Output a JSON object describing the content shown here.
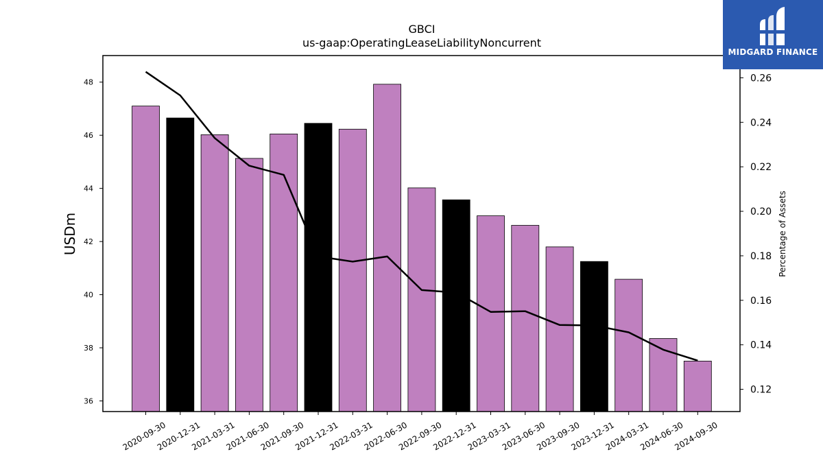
{
  "chart_data": {
    "type": "bar",
    "title": "GBCI",
    "subtitle": "us-gaap:OperatingLeaseLiabilityNoncurrent",
    "ylabel": "USDm",
    "y2label": "Percentage of Assets",
    "ylim": [
      35.6,
      49.0
    ],
    "y2lim": [
      0.11,
      0.27
    ],
    "yticks": [
      36,
      38,
      40,
      42,
      44,
      46,
      48
    ],
    "y2ticks": [
      0.12,
      0.14,
      0.16,
      0.18,
      0.2,
      0.22,
      0.24,
      0.26
    ],
    "categories": [
      "2020-09-30",
      "2020-12-31",
      "2021-03-31",
      "2021-06-30",
      "2021-09-30",
      "2021-12-31",
      "2022-03-31",
      "2022-06-30",
      "2022-09-30",
      "2022-12-31",
      "2023-03-31",
      "2023-06-30",
      "2023-09-30",
      "2023-12-31",
      "2024-03-31",
      "2024-06-30",
      "2024-09-30"
    ],
    "series": [
      {
        "type": "bar",
        "axis": "left",
        "values": [
          47.1,
          46.65,
          46.02,
          45.13,
          46.05,
          46.45,
          46.23,
          47.92,
          44.02,
          43.57,
          42.97,
          42.61,
          41.8,
          41.25,
          40.58,
          38.35,
          37.5
        ],
        "colors": [
          "#bf80bf",
          "#000000",
          "#bf80bf",
          "#bf80bf",
          "#bf80bf",
          "#000000",
          "#bf80bf",
          "#bf80bf",
          "#bf80bf",
          "#000000",
          "#bf80bf",
          "#bf80bf",
          "#bf80bf",
          "#000000",
          "#bf80bf",
          "#bf80bf",
          "#bf80bf"
        ]
      },
      {
        "type": "line",
        "axis": "right",
        "color": "#000000",
        "values": [
          0.2627,
          0.2521,
          0.2329,
          0.2205,
          0.2164,
          0.1797,
          0.1774,
          0.1797,
          0.1646,
          0.1635,
          0.1548,
          0.1551,
          0.1489,
          0.1487,
          0.1456,
          0.1378,
          0.1329
        ]
      }
    ],
    "grid": false
  },
  "logo": {
    "text": "MIDGARD FINANCE",
    "color": "#2b5ab0"
  }
}
